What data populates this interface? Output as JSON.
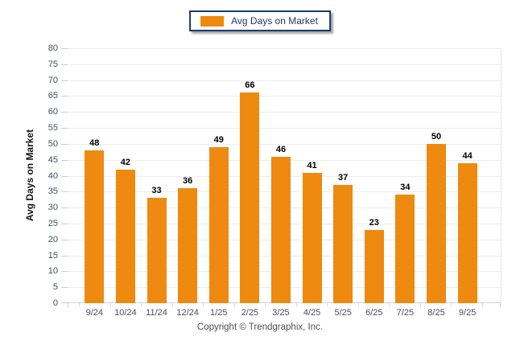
{
  "legend": {
    "label": "Avg Days on Market"
  },
  "y_axis_title": "Avg Days on Market",
  "footer": {
    "copyright": "Copyright © Trendgraphix, Inc."
  },
  "colors": {
    "bar": "#EE8A10",
    "legend_border": "#1B3A66",
    "legend_text": "#1F3864",
    "grid": "#ECECEC",
    "baseline": "#D2D2D2",
    "tick": "#CCCCCC",
    "axis_text": "#454E63",
    "value_label": "#000000",
    "copyright": "#4F4F4F"
  },
  "chart_data": {
    "type": "bar",
    "title": "",
    "legend_entries": [
      "Avg Days on Market"
    ],
    "legend_position": "top-center",
    "categories": [
      "9/24",
      "10/24",
      "11/24",
      "12/24",
      "1/25",
      "2/25",
      "3/25",
      "4/25",
      "5/25",
      "6/25",
      "7/25",
      "8/25",
      "9/25"
    ],
    "values": [
      48,
      42,
      33,
      36,
      49,
      66,
      46,
      41,
      37,
      23,
      34,
      50,
      44
    ],
    "xlabel": "",
    "ylabel": "Avg Days on Market",
    "ylim": [
      0,
      80
    ],
    "ytick_step": 5,
    "grid": true,
    "data_labels": true,
    "bar_color": "#EE8A10"
  }
}
